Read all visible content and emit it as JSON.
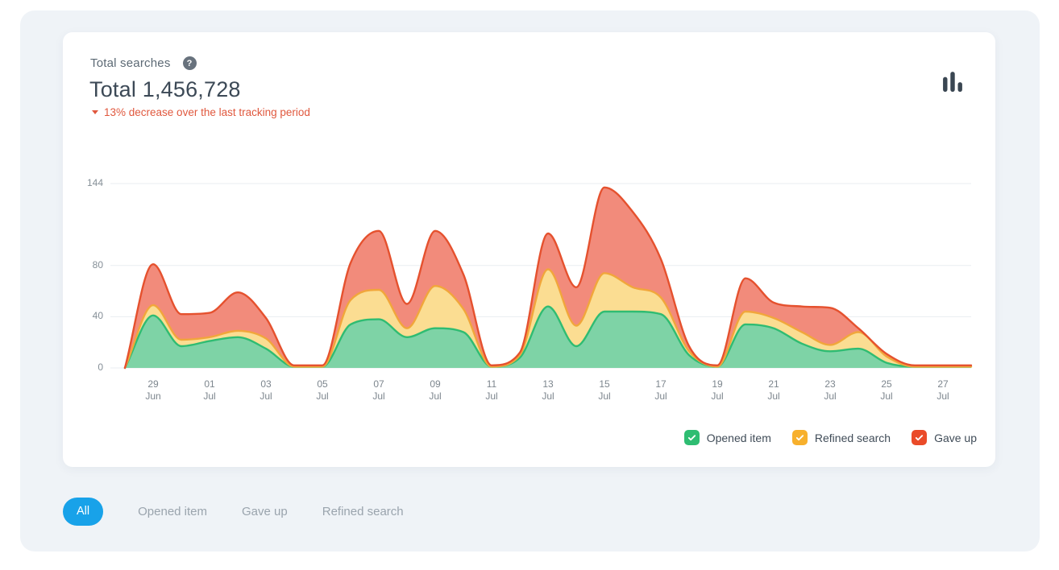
{
  "header": {
    "title": "Total searches",
    "total_label": "Total 1,456,728",
    "delta_text": "13% decrease over the last tracking period",
    "delta_direction": "down"
  },
  "icons": {
    "help_glyph": "?",
    "legend_check": "✓",
    "chart_toggle": "bar-chart"
  },
  "colors": {
    "page_bg": "#ffffff",
    "panel_bg": "#eff3f7",
    "card_bg": "#ffffff",
    "delta_red": "#e0583e",
    "grid_line": "#e9edf1",
    "axis_text": "#858f97",
    "filter_active_bg": "#18a2e9",
    "filter_inactive_text": "#9aa4ad"
  },
  "chart_data": {
    "type": "area",
    "stacked": true,
    "grid": "horizontal",
    "ylim": [
      0,
      144
    ],
    "y_ticks": [
      0,
      40,
      80,
      144
    ],
    "categories": [
      "28 Jun",
      "29 Jun",
      "30 Jun",
      "01 Jul",
      "02 Jul",
      "03 Jul",
      "04 Jul",
      "05 Jul",
      "06 Jul",
      "07 Jul",
      "08 Jul",
      "09 Jul",
      "10 Jul",
      "11 Jul",
      "12 Jul",
      "13 Jul",
      "14 Jul",
      "15 Jul",
      "16 Jul",
      "17 Jul",
      "18 Jul",
      "19 Jul",
      "20 Jul",
      "21 Jul",
      "22 Jul",
      "23 Jul",
      "24 Jul",
      "25 Jul",
      "26 Jul",
      "27 Jul",
      "28 Jul"
    ],
    "x_ticks": [
      [
        "29",
        "Jun"
      ],
      [
        "01",
        "Jul"
      ],
      [
        "03",
        "Jul"
      ],
      [
        "05",
        "Jul"
      ],
      [
        "07",
        "Jul"
      ],
      [
        "09",
        "Jul"
      ],
      [
        "11",
        "Jul"
      ],
      [
        "13",
        "Jul"
      ],
      [
        "15",
        "Jul"
      ],
      [
        "17",
        "Jul"
      ],
      [
        "19",
        "Jul"
      ],
      [
        "21",
        "Jul"
      ],
      [
        "23",
        "Jul"
      ],
      [
        "25",
        "Jul"
      ],
      [
        "27",
        "Jul"
      ]
    ],
    "series": [
      {
        "name": "Opened item",
        "fill": "#7ed3a6",
        "stroke": "#2fbc72",
        "values": [
          0,
          41,
          17,
          21,
          24,
          15,
          1,
          1,
          34,
          38,
          24,
          31,
          28,
          1,
          8,
          48,
          17,
          44,
          44,
          42,
          10,
          1,
          34,
          31,
          19,
          13,
          15,
          4,
          1,
          1,
          1
        ]
      },
      {
        "name": "Refined search",
        "fill": "#fbdd92",
        "stroke": "#f1a63b",
        "values": [
          0,
          8,
          5,
          3,
          5,
          8,
          0,
          0,
          19,
          23,
          7,
          33,
          18,
          0,
          2,
          29,
          16,
          30,
          19,
          13,
          3,
          0,
          10,
          8,
          9,
          5,
          13,
          5,
          0,
          0,
          0
        ]
      },
      {
        "name": "Gave up",
        "fill": "#f28b7b",
        "stroke": "#e5512e",
        "values": [
          0,
          32,
          20,
          19,
          30,
          16,
          1,
          1,
          29,
          46,
          19,
          43,
          27,
          1,
          2,
          28,
          30,
          67,
          59,
          30,
          4,
          1,
          26,
          12,
          20,
          29,
          3,
          2,
          1,
          1,
          1
        ]
      }
    ],
    "legend_position": "bottom-right"
  },
  "legend": {
    "items": [
      {
        "label": "Opened item",
        "checked": true,
        "color": "#2ebd72"
      },
      {
        "label": "Refined search",
        "checked": true,
        "color": "#f7b02d"
      },
      {
        "label": "Gave up",
        "checked": true,
        "color": "#ea4b29"
      }
    ]
  },
  "filters": {
    "items": [
      {
        "label": "All",
        "active": true
      },
      {
        "label": "Opened item",
        "active": false
      },
      {
        "label": "Gave up",
        "active": false
      },
      {
        "label": "Refined search",
        "active": false
      }
    ]
  }
}
